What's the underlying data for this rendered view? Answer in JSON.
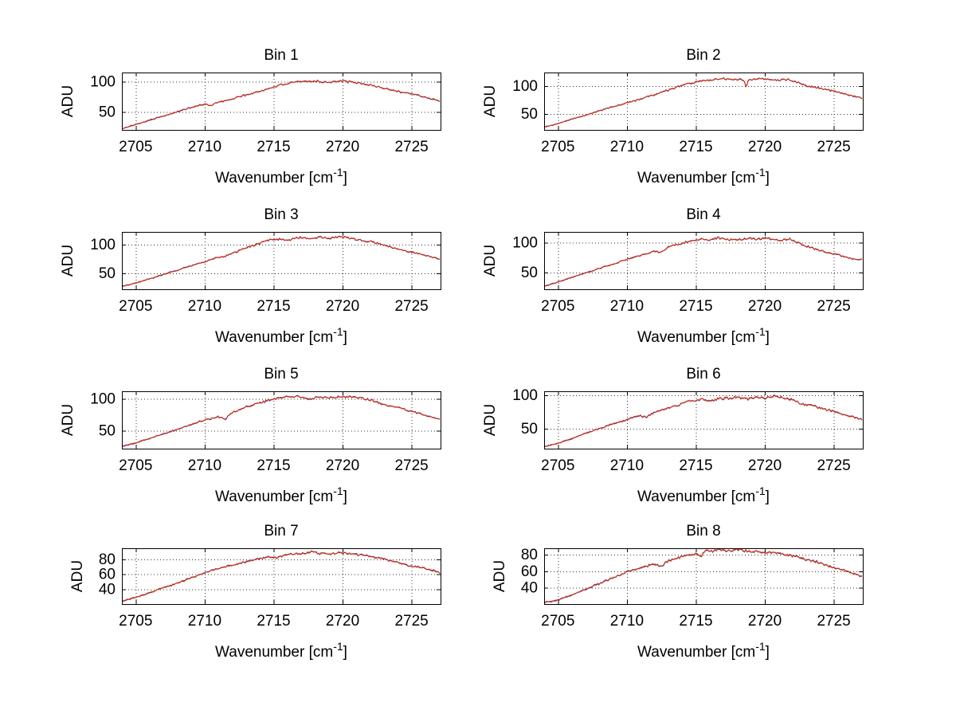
{
  "figure": {
    "background": "#ffffff",
    "grid_rows": 4,
    "grid_cols": 2,
    "shared_xlabel": "Wavenumber [cm^-1]",
    "xlabel_parts": {
      "base": "Wavenumber [cm",
      "sup": "-1",
      "close": "]"
    },
    "shared_ylabel": "ADU",
    "colors": {
      "trace_red": "#cf281a",
      "trace_blue": "#4a3f9f",
      "trace_orange": "#e09a2a",
      "grid_dots": "#333333",
      "axis_line": "#000000",
      "text": "#000000"
    }
  },
  "chart_data": [
    {
      "type": "line",
      "title": "Bin 1",
      "xlabel": "Wavenumber [cm^-1]",
      "ylabel": "ADU",
      "xlim": [
        2704.0,
        2727.1
      ],
      "ylim": [
        20,
        115
      ],
      "xticks": [
        2705,
        2710,
        2715,
        2720,
        2725
      ],
      "yticks": [
        50,
        100
      ],
      "grid": true,
      "noise": 1.6,
      "seed": 101,
      "series_colors": [
        "#e09a2a",
        "#4a3f9f",
        "#cf281a"
      ],
      "points": [
        [
          2704.05,
          22
        ],
        [
          2705,
          29
        ],
        [
          2706,
          36
        ],
        [
          2707,
          43
        ],
        [
          2708,
          50
        ],
        [
          2709,
          57
        ],
        [
          2710,
          63
        ],
        [
          2710.5,
          60
        ],
        [
          2710.8,
          65
        ],
        [
          2711.5,
          68
        ],
        [
          2712,
          71
        ],
        [
          2712.6,
          76
        ],
        [
          2713.4,
          80
        ],
        [
          2714,
          84
        ],
        [
          2715,
          91
        ],
        [
          2715.6,
          95
        ],
        [
          2716.4,
          98
        ],
        [
          2717,
          100
        ],
        [
          2718,
          101
        ],
        [
          2718.6,
          99
        ],
        [
          2719.3,
          100
        ],
        [
          2720,
          101
        ],
        [
          2720.6,
          99
        ],
        [
          2721.3,
          97
        ],
        [
          2722,
          94
        ],
        [
          2723,
          89
        ],
        [
          2724,
          84
        ],
        [
          2725,
          80
        ],
        [
          2726,
          74
        ],
        [
          2727.1,
          68
        ]
      ]
    },
    {
      "type": "line",
      "title": "Bin 2",
      "xlabel": "Wavenumber [cm^-1]",
      "ylabel": "ADU",
      "xlim": [
        2704.0,
        2727.1
      ],
      "ylim": [
        22,
        124
      ],
      "xticks": [
        2705,
        2710,
        2715,
        2720,
        2725
      ],
      "yticks": [
        50,
        100
      ],
      "grid": true,
      "noise": 1.5,
      "seed": 102,
      "series_colors": [
        "#e09a2a",
        "#4a3f9f",
        "#cf281a"
      ],
      "points": [
        [
          2704.05,
          27
        ],
        [
          2705,
          33
        ],
        [
          2706,
          41
        ],
        [
          2707,
          48
        ],
        [
          2708,
          56
        ],
        [
          2709,
          63
        ],
        [
          2710,
          70
        ],
        [
          2711,
          77
        ],
        [
          2712,
          85
        ],
        [
          2713,
          93
        ],
        [
          2714,
          101
        ],
        [
          2715,
          107
        ],
        [
          2716,
          111
        ],
        [
          2717,
          113
        ],
        [
          2717.8,
          112
        ],
        [
          2718.5,
          111
        ],
        [
          2718.65,
          96
        ],
        [
          2718.8,
          111
        ],
        [
          2719.5,
          113
        ],
        [
          2720.3,
          112
        ],
        [
          2721,
          110
        ],
        [
          2721.7,
          112
        ],
        [
          2722.3,
          107
        ],
        [
          2723,
          101
        ],
        [
          2724,
          96
        ],
        [
          2725,
          91
        ],
        [
          2726,
          85
        ],
        [
          2727.1,
          78
        ]
      ]
    },
    {
      "type": "line",
      "title": "Bin 3",
      "xlabel": "Wavenumber [cm^-1]",
      "ylabel": "ADU",
      "xlim": [
        2704.0,
        2727.1
      ],
      "ylim": [
        22,
        122
      ],
      "xticks": [
        2705,
        2710,
        2715,
        2720,
        2725
      ],
      "yticks": [
        50,
        100
      ],
      "grid": true,
      "noise": 1.8,
      "seed": 103,
      "series_colors": [
        "#e09a2a",
        "#4a3f9f",
        "#cf281a"
      ],
      "points": [
        [
          2704.05,
          27
        ],
        [
          2705,
          33
        ],
        [
          2706,
          40
        ],
        [
          2707,
          48
        ],
        [
          2708,
          55
        ],
        [
          2709,
          63
        ],
        [
          2710,
          70
        ],
        [
          2710.7,
          76
        ],
        [
          2711.4,
          79
        ],
        [
          2712,
          84
        ],
        [
          2713,
          94
        ],
        [
          2714,
          102
        ],
        [
          2714.6,
          108
        ],
        [
          2715.2,
          110
        ],
        [
          2716,
          107
        ],
        [
          2716.8,
          112
        ],
        [
          2717.5,
          111
        ],
        [
          2718.3,
          113
        ],
        [
          2719,
          111
        ],
        [
          2719.8,
          114
        ],
        [
          2720.5,
          111
        ],
        [
          2721.2,
          108
        ],
        [
          2722,
          105
        ],
        [
          2722.8,
          101
        ],
        [
          2723.5,
          95
        ],
        [
          2724.3,
          90
        ],
        [
          2725,
          87
        ],
        [
          2726,
          81
        ],
        [
          2727.1,
          74
        ]
      ]
    },
    {
      "type": "line",
      "title": "Bin 4",
      "xlabel": "Wavenumber [cm^-1]",
      "ylabel": "ADU",
      "xlim": [
        2704.0,
        2727.1
      ],
      "ylim": [
        22,
        118
      ],
      "xticks": [
        2705,
        2710,
        2715,
        2720,
        2725
      ],
      "yticks": [
        50,
        100
      ],
      "grid": true,
      "noise": 1.6,
      "seed": 104,
      "series_colors": [
        "#e09a2a",
        "#4a3f9f",
        "#cf281a"
      ],
      "points": [
        [
          2704.05,
          27
        ],
        [
          2705,
          34
        ],
        [
          2706,
          42
        ],
        [
          2707,
          49
        ],
        [
          2708,
          57
        ],
        [
          2709,
          64
        ],
        [
          2710,
          72
        ],
        [
          2711,
          79
        ],
        [
          2712,
          86
        ],
        [
          2712.4,
          83
        ],
        [
          2713,
          93
        ],
        [
          2714,
          99
        ],
        [
          2714.6,
          103
        ],
        [
          2715.3,
          106
        ],
        [
          2716,
          104
        ],
        [
          2716.6,
          108
        ],
        [
          2717.3,
          105
        ],
        [
          2718,
          105
        ],
        [
          2718.8,
          107
        ],
        [
          2719.5,
          106
        ],
        [
          2720.2,
          108
        ],
        [
          2721,
          104
        ],
        [
          2721.8,
          106
        ],
        [
          2722.4,
          100
        ],
        [
          2723,
          94
        ],
        [
          2724,
          87
        ],
        [
          2725,
          81
        ],
        [
          2726,
          75
        ],
        [
          2726.6,
          72
        ],
        [
          2727.1,
          72
        ]
      ]
    },
    {
      "type": "line",
      "title": "Bin 5",
      "xlabel": "Wavenumber [cm^-1]",
      "ylabel": "ADU",
      "xlim": [
        2704.0,
        2727.1
      ],
      "ylim": [
        22,
        112
      ],
      "xticks": [
        2705,
        2710,
        2715,
        2720,
        2725
      ],
      "yticks": [
        50,
        100
      ],
      "grid": true,
      "noise": 1.6,
      "seed": 105,
      "series_colors": [
        "#e09a2a",
        "#4a3f9f",
        "#cf281a"
      ],
      "points": [
        [
          2704.05,
          26
        ],
        [
          2705,
          31
        ],
        [
          2706,
          38
        ],
        [
          2707,
          45
        ],
        [
          2708,
          52
        ],
        [
          2709,
          60
        ],
        [
          2710,
          67
        ],
        [
          2711,
          72
        ],
        [
          2711.5,
          69
        ],
        [
          2712,
          79
        ],
        [
          2713,
          87
        ],
        [
          2714,
          94
        ],
        [
          2715,
          100
        ],
        [
          2715.7,
          103
        ],
        [
          2716.4,
          104
        ],
        [
          2717,
          103
        ],
        [
          2717.7,
          100
        ],
        [
          2718.4,
          103
        ],
        [
          2719,
          102
        ],
        [
          2720,
          104
        ],
        [
          2720.8,
          102
        ],
        [
          2721.5,
          101
        ],
        [
          2722.2,
          97
        ],
        [
          2723,
          91
        ],
        [
          2724,
          86
        ],
        [
          2725,
          81
        ],
        [
          2726,
          74
        ],
        [
          2727.1,
          68
        ]
      ]
    },
    {
      "type": "line",
      "title": "Bin 6",
      "xlabel": "Wavenumber [cm^-1]",
      "ylabel": "ADU",
      "xlim": [
        2704.0,
        2727.1
      ],
      "ylim": [
        20,
        106
      ],
      "xticks": [
        2705,
        2710,
        2715,
        2720,
        2725
      ],
      "yticks": [
        50,
        100
      ],
      "grid": true,
      "noise": 1.8,
      "seed": 106,
      "series_colors": [
        "#e09a2a",
        "#4a3f9f",
        "#cf281a"
      ],
      "points": [
        [
          2704.05,
          23
        ],
        [
          2705,
          28
        ],
        [
          2706,
          35
        ],
        [
          2707,
          43
        ],
        [
          2708,
          50
        ],
        [
          2709,
          57
        ],
        [
          2710,
          64
        ],
        [
          2710.8,
          70
        ],
        [
          2711.4,
          67
        ],
        [
          2712,
          75
        ],
        [
          2712.7,
          79
        ],
        [
          2713.4,
          83
        ],
        [
          2714,
          87
        ],
        [
          2714.7,
          92
        ],
        [
          2715.4,
          94
        ],
        [
          2716,
          91
        ],
        [
          2716.7,
          96
        ],
        [
          2717.4,
          95
        ],
        [
          2718,
          98
        ],
        [
          2718.7,
          94
        ],
        [
          2719.4,
          98
        ],
        [
          2720,
          95
        ],
        [
          2720.7,
          99
        ],
        [
          2721.4,
          96
        ],
        [
          2722,
          93
        ],
        [
          2722.7,
          87
        ],
        [
          2723.4,
          84
        ],
        [
          2724,
          81
        ],
        [
          2725,
          76
        ],
        [
          2726,
          70
        ],
        [
          2727.1,
          63
        ]
      ]
    },
    {
      "type": "line",
      "title": "Bin 7",
      "xlabel": "Wavenumber [cm^-1]",
      "ylabel": "ADU",
      "xlim": [
        2704.0,
        2727.1
      ],
      "ylim": [
        20,
        95
      ],
      "xticks": [
        2705,
        2710,
        2715,
        2720,
        2725
      ],
      "yticks": [
        40,
        60,
        80
      ],
      "grid": true,
      "noise": 1.2,
      "seed": 107,
      "series_colors": [
        "#e09a2a",
        "#4a3f9f",
        "#cf281a"
      ],
      "points": [
        [
          2704.05,
          24
        ],
        [
          2705,
          29
        ],
        [
          2706,
          35
        ],
        [
          2707,
          42
        ],
        [
          2708,
          48
        ],
        [
          2709,
          55
        ],
        [
          2710,
          62
        ],
        [
          2711,
          68
        ],
        [
          2712,
          72
        ],
        [
          2713,
          77
        ],
        [
          2714,
          81
        ],
        [
          2714.7,
          84
        ],
        [
          2715.2,
          82
        ],
        [
          2716,
          87
        ],
        [
          2717,
          88
        ],
        [
          2717.7,
          90
        ],
        [
          2718.4,
          88
        ],
        [
          2719,
          87
        ],
        [
          2719.7,
          89
        ],
        [
          2720.4,
          88
        ],
        [
          2721,
          87
        ],
        [
          2721.8,
          85
        ],
        [
          2722.4,
          83
        ],
        [
          2723,
          80
        ],
        [
          2723.8,
          77
        ],
        [
          2724.4,
          74
        ],
        [
          2724.9,
          71
        ],
        [
          2725.5,
          70
        ],
        [
          2726.2,
          67
        ],
        [
          2727.1,
          62
        ]
      ]
    },
    {
      "type": "line",
      "title": "Bin 8",
      "xlabel": "Wavenumber [cm^-1]",
      "ylabel": "ADU",
      "xlim": [
        2704.0,
        2727.1
      ],
      "ylim": [
        20,
        88
      ],
      "xticks": [
        2705,
        2710,
        2715,
        2720,
        2725
      ],
      "yticks": [
        40,
        60,
        80
      ],
      "grid": true,
      "noise": 1.4,
      "seed": 108,
      "series_colors": [
        "#e09a2a",
        "#4a3f9f",
        "#cf281a"
      ],
      "points": [
        [
          2704.05,
          22
        ],
        [
          2705,
          25
        ],
        [
          2706,
          31
        ],
        [
          2707,
          38
        ],
        [
          2708,
          45
        ],
        [
          2709,
          52
        ],
        [
          2710,
          59
        ],
        [
          2711,
          64
        ],
        [
          2712,
          69
        ],
        [
          2712.5,
          66
        ],
        [
          2713,
          73
        ],
        [
          2714,
          78
        ],
        [
          2715,
          81
        ],
        [
          2715.4,
          78
        ],
        [
          2715.7,
          87
        ],
        [
          2716,
          84
        ],
        [
          2716.7,
          86
        ],
        [
          2717.4,
          85
        ],
        [
          2718,
          86
        ],
        [
          2719,
          84
        ],
        [
          2720,
          83
        ],
        [
          2721,
          82
        ],
        [
          2722,
          79
        ],
        [
          2722.7,
          76
        ],
        [
          2723.4,
          73
        ],
        [
          2724,
          70
        ],
        [
          2724.7,
          66
        ],
        [
          2725.4,
          63
        ],
        [
          2726,
          60
        ],
        [
          2727.1,
          53
        ]
      ]
    }
  ]
}
